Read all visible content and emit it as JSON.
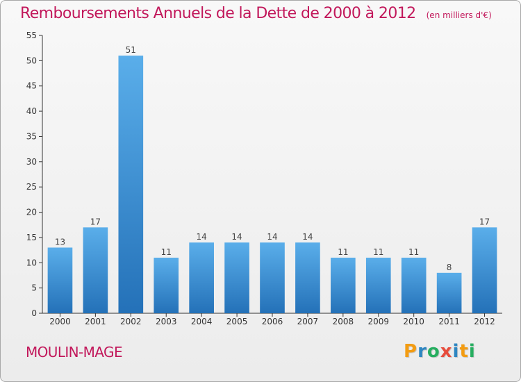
{
  "title": "Remboursements Annuels de la Dette de 2000 à 2012",
  "subtitle": "(en milliers d'€)",
  "commune": "MOULIN-MAGE",
  "logo": {
    "text": "Proxiti",
    "letters": [
      {
        "ch": "P",
        "color": "#f39c12"
      },
      {
        "ch": "r",
        "color": "#2e86c1"
      },
      {
        "ch": "o",
        "color": "#27ae60"
      },
      {
        "ch": "x",
        "color": "#e74c3c"
      },
      {
        "ch": "i",
        "color": "#2e86c1"
      },
      {
        "ch": "t",
        "color": "#f39c12"
      },
      {
        "ch": "i",
        "color": "#27ae60"
      }
    ]
  },
  "colors": {
    "accent": "#c2185b",
    "bar_top": "#5aaeea",
    "bar_bottom": "#2471b8"
  },
  "chart_data": {
    "type": "bar",
    "categories": [
      "2000",
      "2001",
      "2002",
      "2003",
      "2004",
      "2005",
      "2006",
      "2007",
      "2008",
      "2009",
      "2010",
      "2011",
      "2012"
    ],
    "values": [
      13,
      17,
      51,
      11,
      14,
      14,
      14,
      14,
      11,
      11,
      11,
      8,
      17
    ],
    "ylim": [
      0,
      55
    ],
    "yticks": [
      0,
      5,
      10,
      15,
      20,
      25,
      30,
      35,
      40,
      45,
      50,
      55
    ],
    "grid": false,
    "data_labels": true
  }
}
